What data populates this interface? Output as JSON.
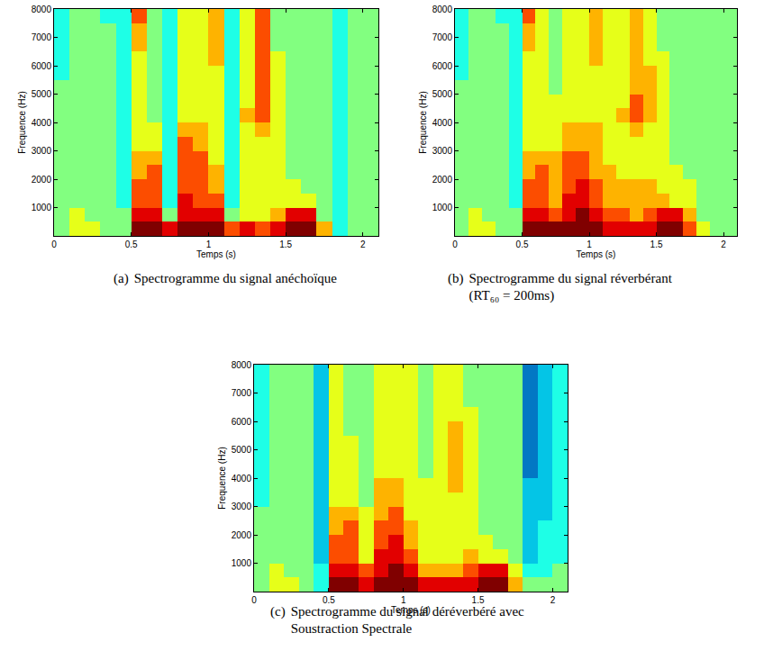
{
  "chart_data": [
    {
      "type": "heatmap",
      "label": "(a)",
      "caption": "Spectrogramme du signal anéchoïque",
      "xlabel": "Temps (s)",
      "ylabel": "Frequence (Hz)",
      "color": "jet",
      "xlim": [
        0,
        2.1
      ],
      "ylim": [
        0,
        8000
      ],
      "xticks": [
        0,
        0.5,
        1,
        1.5,
        2
      ],
      "yticks": [
        1000,
        2000,
        3000,
        4000,
        5000,
        6000,
        7000,
        8000
      ],
      "zlim": [
        0,
        10
      ],
      "x": [
        0.05,
        0.15,
        0.25,
        0.35,
        0.45,
        0.55,
        0.65,
        0.75,
        0.85,
        0.95,
        1.05,
        1.15,
        1.25,
        1.35,
        1.45,
        1.55,
        1.65,
        1.75,
        1.85,
        1.95,
        2.05
      ],
      "y": [
        250,
        750,
        1250,
        1750,
        2250,
        2750,
        3250,
        3750,
        4250,
        4750,
        5250,
        5750,
        6250,
        6750,
        7250,
        7750
      ],
      "z": [
        [
          5,
          6,
          6,
          5,
          5,
          10,
          10,
          9,
          10,
          10,
          10,
          8,
          9,
          8,
          9,
          10,
          10,
          7,
          4,
          5,
          5
        ],
        [
          5,
          6,
          5,
          5,
          5,
          9,
          9,
          5,
          9,
          9,
          9,
          5,
          6,
          6,
          7,
          9,
          9,
          5,
          4,
          5,
          5
        ],
        [
          5,
          5,
          5,
          5,
          4,
          8,
          8,
          4,
          9,
          8,
          8,
          4,
          6,
          6,
          6,
          6,
          6,
          5,
          4,
          5,
          5
        ],
        [
          5,
          5,
          5,
          5,
          4,
          8,
          8,
          4,
          8,
          8,
          7,
          4,
          6,
          6,
          6,
          6,
          5,
          5,
          4,
          5,
          5
        ],
        [
          5,
          5,
          5,
          5,
          4,
          7,
          8,
          4,
          8,
          8,
          7,
          4,
          6,
          6,
          6,
          5,
          5,
          5,
          4,
          5,
          5
        ],
        [
          5,
          5,
          5,
          5,
          4,
          7,
          7,
          4,
          8,
          8,
          6,
          4,
          6,
          6,
          6,
          5,
          5,
          5,
          4,
          5,
          5
        ],
        [
          5,
          5,
          5,
          5,
          4,
          6,
          6,
          4,
          8,
          7,
          6,
          4,
          6,
          6,
          6,
          5,
          5,
          5,
          4,
          5,
          5
        ],
        [
          5,
          5,
          5,
          5,
          4,
          6,
          6,
          4,
          7,
          7,
          6,
          4,
          6,
          7,
          6,
          5,
          5,
          5,
          4,
          5,
          5
        ],
        [
          5,
          5,
          5,
          5,
          4,
          6,
          5,
          4,
          6,
          6,
          6,
          4,
          7,
          8,
          6,
          5,
          5,
          5,
          4,
          5,
          5
        ],
        [
          5,
          5,
          5,
          5,
          4,
          6,
          5,
          4,
          6,
          6,
          6,
          4,
          6,
          8,
          6,
          5,
          5,
          5,
          4,
          5,
          5
        ],
        [
          5,
          5,
          5,
          5,
          4,
          6,
          5,
          4,
          6,
          6,
          6,
          4,
          6,
          8,
          6,
          5,
          5,
          5,
          4,
          5,
          5
        ],
        [
          4,
          5,
          5,
          5,
          4,
          6,
          5,
          4,
          6,
          6,
          6,
          4,
          6,
          8,
          6,
          5,
          5,
          5,
          4,
          5,
          5
        ],
        [
          4,
          5,
          5,
          5,
          4,
          6,
          5,
          4,
          6,
          6,
          7,
          4,
          6,
          8,
          6,
          5,
          5,
          5,
          4,
          5,
          5
        ],
        [
          4,
          5,
          5,
          5,
          4,
          7,
          5,
          4,
          6,
          6,
          7,
          4,
          6,
          8,
          5,
          5,
          5,
          5,
          4,
          5,
          5
        ],
        [
          4,
          5,
          5,
          5,
          4,
          7,
          5,
          4,
          6,
          6,
          7,
          4,
          6,
          8,
          5,
          5,
          5,
          5,
          4,
          5,
          5
        ],
        [
          4,
          5,
          5,
          4,
          4,
          8,
          5,
          4,
          6,
          6,
          7,
          4,
          6,
          8,
          5,
          5,
          5,
          5,
          4,
          5,
          5
        ]
      ]
    },
    {
      "type": "heatmap",
      "label": "(b)",
      "caption": "Spectrogramme du signal réverbérant (RT₆₀ = 200ms)",
      "xlabel": "Temps (s)",
      "ylabel": "Frequence (Hz)",
      "color": "jet",
      "xlim": [
        0,
        2.1
      ],
      "ylim": [
        0,
        8000
      ],
      "xticks": [
        0,
        0.5,
        1,
        1.5,
        2
      ],
      "yticks": [
        1000,
        2000,
        3000,
        4000,
        5000,
        6000,
        7000,
        8000
      ],
      "zlim": [
        0,
        10
      ],
      "x": [
        0.05,
        0.15,
        0.25,
        0.35,
        0.45,
        0.55,
        0.65,
        0.75,
        0.85,
        0.95,
        1.05,
        1.15,
        1.25,
        1.35,
        1.45,
        1.55,
        1.65,
        1.75,
        1.85,
        1.95,
        2.05
      ],
      "y": [
        250,
        750,
        1250,
        1750,
        2250,
        2750,
        3250,
        3750,
        4250,
        4750,
        5250,
        5750,
        6250,
        6750,
        7250,
        7750
      ],
      "z": [
        [
          5,
          6,
          6,
          5,
          5,
          10,
          10,
          10,
          10,
          10,
          10,
          9,
          9,
          9,
          9,
          10,
          10,
          8,
          6,
          5,
          5
        ],
        [
          5,
          6,
          5,
          5,
          5,
          9,
          9,
          8,
          9,
          10,
          9,
          8,
          8,
          7,
          8,
          9,
          9,
          7,
          5,
          5,
          5
        ],
        [
          5,
          5,
          5,
          5,
          4,
          8,
          8,
          7,
          9,
          9,
          8,
          7,
          7,
          7,
          7,
          7,
          6,
          6,
          5,
          5,
          5
        ],
        [
          5,
          5,
          5,
          5,
          4,
          8,
          8,
          7,
          8,
          9,
          8,
          7,
          7,
          7,
          7,
          6,
          6,
          6,
          5,
          5,
          5
        ],
        [
          5,
          5,
          5,
          5,
          4,
          7,
          8,
          7,
          8,
          8,
          7,
          7,
          6,
          6,
          6,
          6,
          6,
          5,
          5,
          5,
          5
        ],
        [
          5,
          5,
          5,
          5,
          4,
          7,
          7,
          7,
          8,
          8,
          7,
          6,
          6,
          6,
          6,
          6,
          5,
          5,
          5,
          5,
          5
        ],
        [
          5,
          5,
          5,
          5,
          4,
          6,
          6,
          6,
          7,
          7,
          7,
          6,
          6,
          6,
          6,
          6,
          5,
          5,
          5,
          5,
          5
        ],
        [
          5,
          5,
          5,
          5,
          4,
          6,
          6,
          6,
          7,
          7,
          7,
          6,
          6,
          7,
          6,
          6,
          5,
          5,
          5,
          5,
          5
        ],
        [
          5,
          5,
          5,
          5,
          4,
          6,
          6,
          6,
          6,
          6,
          6,
          6,
          7,
          8,
          7,
          6,
          5,
          5,
          5,
          5,
          5
        ],
        [
          5,
          5,
          5,
          5,
          4,
          6,
          6,
          6,
          6,
          6,
          6,
          6,
          6,
          8,
          7,
          6,
          5,
          5,
          5,
          5,
          5
        ],
        [
          5,
          5,
          5,
          5,
          4,
          6,
          6,
          5,
          6,
          6,
          6,
          6,
          6,
          7,
          7,
          6,
          5,
          5,
          5,
          5,
          5
        ],
        [
          4,
          5,
          5,
          5,
          4,
          6,
          6,
          5,
          6,
          6,
          6,
          6,
          6,
          7,
          7,
          6,
          5,
          5,
          5,
          5,
          5
        ],
        [
          4,
          5,
          5,
          5,
          4,
          6,
          6,
          5,
          6,
          6,
          7,
          6,
          6,
          7,
          6,
          6,
          5,
          5,
          5,
          5,
          5
        ],
        [
          4,
          5,
          5,
          5,
          4,
          7,
          6,
          5,
          6,
          6,
          7,
          6,
          6,
          7,
          6,
          5,
          5,
          5,
          5,
          5,
          5
        ],
        [
          4,
          5,
          5,
          5,
          4,
          7,
          6,
          5,
          6,
          6,
          7,
          6,
          6,
          7,
          6,
          5,
          5,
          5,
          5,
          5,
          5
        ],
        [
          4,
          5,
          5,
          4,
          4,
          8,
          6,
          5,
          6,
          6,
          7,
          6,
          6,
          7,
          6,
          5,
          5,
          5,
          5,
          5,
          5
        ]
      ]
    },
    {
      "type": "heatmap",
      "label": "(c)",
      "caption": "Spectrogramme du signal déréverbéré avec Soustraction Spectrale",
      "xlabel": "Temps (s)",
      "ylabel": "Frequence (Hz)",
      "color": "jet",
      "xlim": [
        0,
        2.1
      ],
      "ylim": [
        0,
        8000
      ],
      "xticks": [
        0,
        0.5,
        1,
        1.5,
        2
      ],
      "yticks": [
        1000,
        2000,
        3000,
        4000,
        5000,
        6000,
        7000,
        8000
      ],
      "zlim": [
        0,
        10
      ],
      "x": [
        0.05,
        0.15,
        0.25,
        0.35,
        0.45,
        0.55,
        0.65,
        0.75,
        0.85,
        0.95,
        1.05,
        1.15,
        1.25,
        1.35,
        1.45,
        1.55,
        1.65,
        1.75,
        1.85,
        1.95,
        2.05
      ],
      "y": [
        250,
        750,
        1250,
        1750,
        2250,
        2750,
        3250,
        3750,
        4250,
        4750,
        5250,
        5750,
        6250,
        6750,
        7250,
        7750
      ],
      "z": [
        [
          5,
          6,
          6,
          5,
          4,
          10,
          10,
          9,
          10,
          10,
          10,
          9,
          9,
          9,
          9,
          10,
          10,
          7,
          5,
          5,
          5
        ],
        [
          5,
          6,
          5,
          5,
          4,
          9,
          9,
          8,
          9,
          10,
          9,
          7,
          7,
          7,
          8,
          9,
          9,
          6,
          4,
          4,
          5
        ],
        [
          5,
          5,
          5,
          5,
          3,
          8,
          8,
          6,
          9,
          9,
          8,
          6,
          6,
          6,
          7,
          6,
          6,
          5,
          3,
          4,
          4
        ],
        [
          5,
          5,
          5,
          5,
          3,
          8,
          8,
          6,
          8,
          9,
          7,
          6,
          6,
          6,
          6,
          6,
          5,
          5,
          3,
          4,
          4
        ],
        [
          5,
          5,
          5,
          5,
          3,
          7,
          8,
          6,
          8,
          8,
          7,
          6,
          6,
          6,
          6,
          5,
          5,
          5,
          3,
          4,
          4
        ],
        [
          5,
          5,
          5,
          5,
          3,
          7,
          7,
          6,
          7,
          8,
          6,
          6,
          6,
          6,
          6,
          5,
          5,
          5,
          3,
          3,
          4
        ],
        [
          4,
          5,
          5,
          5,
          3,
          6,
          6,
          5,
          7,
          7,
          6,
          6,
          6,
          6,
          6,
          5,
          5,
          5,
          3,
          3,
          4
        ],
        [
          4,
          5,
          5,
          5,
          3,
          6,
          6,
          5,
          7,
          7,
          6,
          6,
          6,
          7,
          6,
          5,
          5,
          5,
          3,
          3,
          4
        ],
        [
          4,
          5,
          5,
          5,
          3,
          6,
          6,
          5,
          6,
          6,
          6,
          5,
          6,
          7,
          6,
          5,
          5,
          5,
          2,
          3,
          4
        ],
        [
          4,
          5,
          5,
          5,
          3,
          6,
          6,
          5,
          6,
          6,
          6,
          5,
          6,
          7,
          6,
          5,
          5,
          5,
          2,
          3,
          4
        ],
        [
          4,
          5,
          5,
          5,
          3,
          6,
          6,
          5,
          6,
          6,
          6,
          5,
          6,
          7,
          6,
          5,
          5,
          5,
          2,
          3,
          4
        ],
        [
          4,
          5,
          5,
          5,
          3,
          6,
          5,
          5,
          6,
          6,
          6,
          5,
          6,
          7,
          6,
          5,
          5,
          5,
          2,
          3,
          4
        ],
        [
          4,
          5,
          5,
          5,
          3,
          6,
          5,
          5,
          6,
          6,
          6,
          5,
          6,
          6,
          6,
          5,
          5,
          5,
          2,
          3,
          4
        ],
        [
          4,
          5,
          5,
          5,
          3,
          6,
          5,
          5,
          6,
          6,
          6,
          5,
          6,
          6,
          5,
          5,
          5,
          5,
          2,
          3,
          4
        ],
        [
          4,
          5,
          5,
          5,
          3,
          6,
          5,
          5,
          6,
          6,
          6,
          5,
          6,
          6,
          5,
          5,
          5,
          5,
          2,
          3,
          4
        ],
        [
          4,
          5,
          5,
          5,
          3,
          6,
          5,
          5,
          6,
          6,
          6,
          5,
          6,
          6,
          5,
          5,
          5,
          5,
          2,
          3,
          4
        ]
      ]
    }
  ]
}
